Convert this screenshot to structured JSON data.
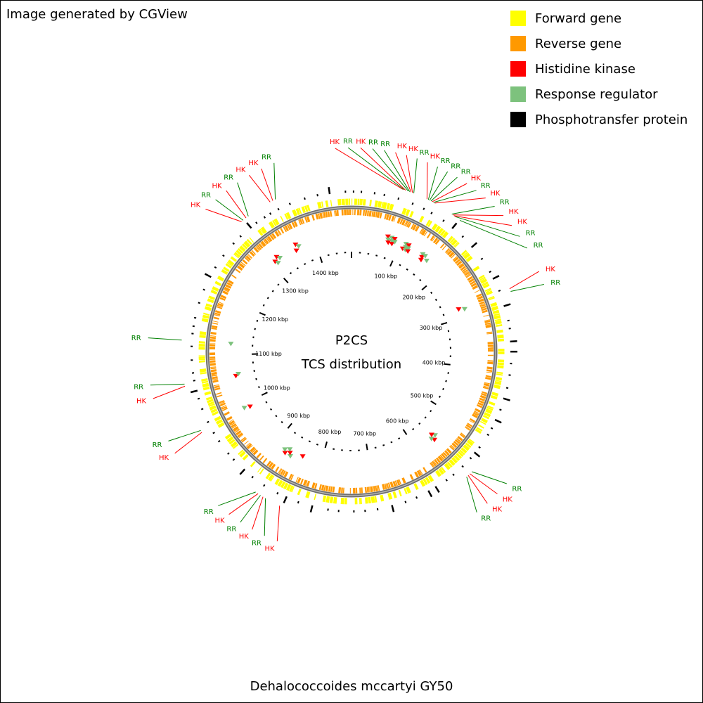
{
  "credit": "Image generated by CGView",
  "caption": "Dehalococcoides mccartyi GY50",
  "title_lines": [
    "P2CS",
    "TCS distribution"
  ],
  "legend": [
    {
      "label": "Forward gene",
      "color": "#FFFF00"
    },
    {
      "label": "Reverse gene",
      "color": "#FF9900"
    },
    {
      "label": "Histidine kinase",
      "color": "#FF0000"
    },
    {
      "label": "Response regulator",
      "color": "#7DC27D"
    },
    {
      "label": "Phosphotransfer protein",
      "color": "#000000"
    }
  ],
  "genome_kbp": 1475,
  "tick_labels": [
    "100 kbp",
    "200 kbp",
    "300 kbp",
    "400 kbp",
    "500 kbp",
    "600 kbp",
    "700 kbp",
    "800 kbp",
    "900 kbp",
    "1000 kbp",
    "1100 kbp",
    "1200 kbp",
    "1300 kbp",
    "1400 kbp"
  ],
  "label_colors": {
    "HK": "#FF0000",
    "RR": "#008000"
  },
  "features": [
    {
      "type": "HK",
      "kbp": 72
    },
    {
      "type": "RR",
      "kbp": 74
    },
    {
      "type": "HK",
      "kbp": 76
    },
    {
      "type": "RR",
      "kbp": 80
    },
    {
      "type": "RR",
      "kbp": 82
    },
    {
      "type": "HK",
      "kbp": 84
    },
    {
      "type": "HK",
      "kbp": 86
    },
    {
      "type": "RR",
      "kbp": 88
    },
    {
      "type": "HK",
      "kbp": 108
    },
    {
      "type": "RR",
      "kbp": 110
    },
    {
      "type": "RR",
      "kbp": 112
    },
    {
      "type": "RR",
      "kbp": 114
    },
    {
      "type": "HK",
      "kbp": 116
    },
    {
      "type": "RR",
      "kbp": 118
    },
    {
      "type": "HK",
      "kbp": 120
    },
    {
      "type": "RR",
      "kbp": 148
    },
    {
      "type": "HK",
      "kbp": 150
    },
    {
      "type": "HK",
      "kbp": 152
    },
    {
      "type": "RR",
      "kbp": 154
    },
    {
      "type": "RR",
      "kbp": 162
    },
    {
      "type": "HK",
      "kbp": 280
    },
    {
      "type": "RR",
      "kbp": 284
    },
    {
      "type": "RR",
      "kbp": 553
    },
    {
      "type": "HK",
      "kbp": 557
    },
    {
      "type": "HK",
      "kbp": 560
    },
    {
      "type": "RR",
      "kbp": 563
    },
    {
      "type": "HK",
      "kbp": 840
    },
    {
      "type": "RR",
      "kbp": 862
    },
    {
      "type": "HK",
      "kbp": 866
    },
    {
      "type": "RR",
      "kbp": 870
    },
    {
      "type": "HK",
      "kbp": 874
    },
    {
      "type": "RR",
      "kbp": 878
    },
    {
      "type": "HK",
      "kbp": 990
    },
    {
      "type": "RR",
      "kbp": 993
    },
    {
      "type": "HK",
      "kbp": 1058
    },
    {
      "type": "RR",
      "kbp": 1061
    },
    {
      "type": "RR",
      "kbp": 1122
    },
    {
      "type": "HK",
      "kbp": 1310
    },
    {
      "type": "RR",
      "kbp": 1313
    },
    {
      "type": "HK",
      "kbp": 1318
    },
    {
      "type": "RR",
      "kbp": 1322
    },
    {
      "type": "HK",
      "kbp": 1358
    },
    {
      "type": "HK",
      "kbp": 1362
    },
    {
      "type": "RR",
      "kbp": 1366
    }
  ]
}
